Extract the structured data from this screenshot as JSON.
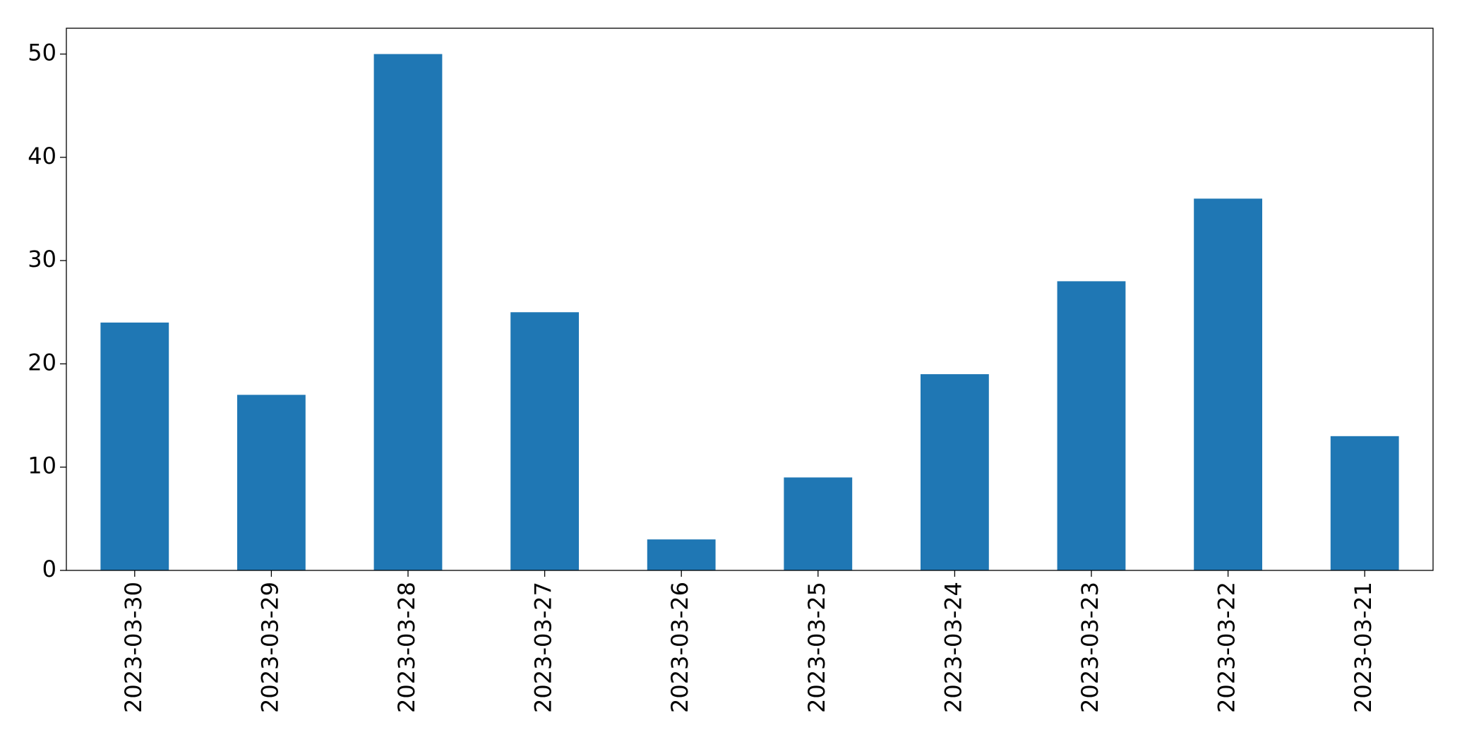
{
  "chart_data": {
    "type": "bar",
    "categories": [
      "2023-03-30",
      "2023-03-29",
      "2023-03-28",
      "2023-03-27",
      "2023-03-26",
      "2023-03-25",
      "2023-03-24",
      "2023-03-23",
      "2023-03-22",
      "2023-03-21"
    ],
    "values": [
      24,
      17,
      50,
      25,
      3,
      9,
      19,
      28,
      36,
      13
    ],
    "color": "#1f77b4",
    "ylim": [
      0,
      52.5
    ],
    "yticks": [
      0,
      10,
      20,
      30,
      40,
      50
    ],
    "grid": false
  }
}
